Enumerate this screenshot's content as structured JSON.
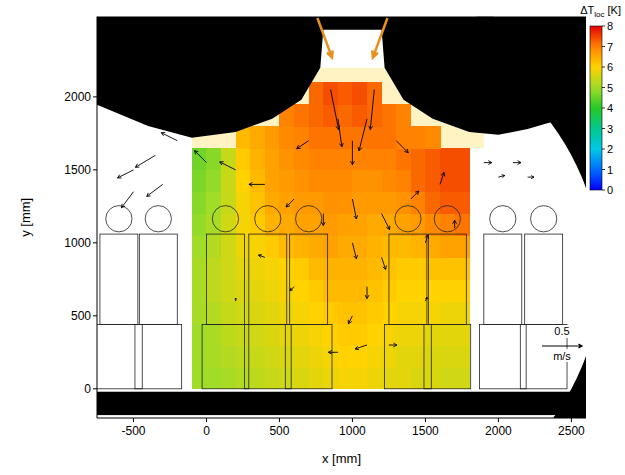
{
  "chart_data": {
    "type": "heatmap",
    "x_label": "x [mm]",
    "y_label": "y [mm]",
    "xlim": [
      -750,
      2600
    ],
    "ylim": [
      -200,
      2550
    ],
    "xticks": [
      -500,
      0,
      500,
      1000,
      1500,
      2000,
      2500
    ],
    "yticks": [
      0,
      500,
      1000,
      1500,
      2000
    ],
    "x_edges": [
      -100,
      0,
      100,
      200,
      300,
      400,
      500,
      600,
      700,
      800,
      900,
      1000,
      1100,
      1200,
      1300,
      1400,
      1500,
      1600,
      1700,
      1800
    ],
    "y_edges": [
      0,
      150,
      300,
      450,
      600,
      750,
      900,
      1050,
      1200,
      1350,
      1500,
      1650,
      1800,
      1950,
      2100
    ],
    "cells": [
      [
        5.0,
        5.0,
        5.1,
        5.2,
        5.3,
        5.4,
        5.5,
        5.6,
        5.7,
        5.8,
        5.9,
        5.9,
        5.8,
        5.7,
        5.7,
        5.6,
        5.6,
        5.5,
        5.5
      ],
      [
        5.0,
        5.1,
        5.2,
        5.3,
        5.4,
        5.5,
        5.6,
        5.7,
        5.8,
        5.9,
        6.0,
        6.0,
        5.9,
        5.8,
        5.7,
        5.7,
        5.6,
        5.6,
        5.6
      ],
      [
        5.0,
        5.1,
        5.3,
        5.4,
        5.5,
        5.6,
        5.7,
        5.8,
        5.9,
        6.0,
        6.1,
        6.1,
        6.0,
        5.9,
        5.8,
        5.8,
        5.7,
        5.7,
        5.7
      ],
      [
        5.1,
        5.2,
        5.4,
        5.5,
        5.6,
        5.7,
        5.8,
        5.9,
        6.0,
        6.1,
        6.2,
        6.2,
        6.1,
        6.0,
        5.9,
        5.9,
        5.9,
        5.8,
        5.8
      ],
      [
        5.1,
        5.3,
        5.5,
        5.6,
        5.7,
        5.8,
        5.9,
        6.0,
        6.1,
        6.3,
        6.3,
        6.3,
        6.2,
        6.1,
        6.0,
        6.0,
        6.0,
        6.0,
        6.0
      ],
      [
        5.1,
        5.3,
        5.5,
        5.7,
        5.8,
        5.9,
        6.0,
        6.1,
        6.3,
        6.4,
        6.4,
        6.4,
        6.3,
        6.2,
        6.1,
        6.1,
        6.2,
        6.2,
        6.2
      ],
      [
        5.0,
        5.2,
        5.5,
        5.8,
        5.9,
        6.1,
        6.3,
        6.4,
        6.5,
        6.6,
        6.5,
        6.5,
        6.4,
        6.3,
        6.3,
        6.4,
        6.5,
        6.6,
        6.6
      ],
      [
        4.9,
        5.1,
        5.5,
        5.9,
        6.1,
        6.4,
        6.5,
        6.6,
        6.6,
        6.7,
        6.6,
        6.6,
        6.5,
        6.5,
        6.6,
        6.7,
        6.9,
        7.0,
        7.1
      ],
      [
        4.8,
        5.0,
        5.4,
        5.9,
        6.2,
        6.5,
        6.6,
        6.7,
        6.7,
        6.8,
        6.8,
        6.7,
        6.7,
        6.7,
        6.8,
        7.0,
        7.2,
        7.3,
        7.3
      ],
      [
        4.7,
        4.9,
        5.4,
        6.0,
        6.3,
        6.6,
        6.7,
        6.8,
        6.9,
        6.9,
        6.9,
        6.8,
        6.8,
        6.9,
        7.0,
        7.2,
        7.3,
        7.4,
        7.4
      ],
      [
        4.6,
        4.8,
        5.4,
        6.1,
        6.4,
        6.6,
        6.8,
        6.9,
        7.0,
        7.0,
        7.0,
        7.0,
        7.0,
        7.0,
        7.1,
        7.2,
        7.3,
        7.4,
        7.4
      ],
      [
        null,
        null,
        null,
        6.3,
        6.5,
        6.7,
        6.9,
        7.0,
        7.1,
        7.1,
        7.1,
        7.1,
        7.1,
        7.1,
        7.0,
        7.0,
        6.9,
        null,
        null
      ],
      [
        null,
        null,
        null,
        null,
        null,
        null,
        7.0,
        7.1,
        7.2,
        7.3,
        7.2,
        7.3,
        7.2,
        7.1,
        7.0,
        null,
        null,
        null,
        null
      ],
      [
        null,
        null,
        null,
        null,
        null,
        null,
        null,
        null,
        7.2,
        7.4,
        7.3,
        7.4,
        7.2,
        null,
        null,
        null,
        null,
        null,
        null
      ]
    ],
    "colorbar": {
      "label": "ΔT",
      "subscript": "loc",
      "unit": "[K]",
      "range": [
        0,
        8
      ],
      "ticks": [
        0,
        1,
        2,
        3,
        4,
        5,
        6,
        7,
        8
      ]
    },
    "vectors": {
      "x": [
        850,
        1150,
        900,
        1100,
        1000,
        700,
        1300,
        -500,
        -350,
        -200,
        -500,
        -300,
        1900,
        2100,
        2000,
        2200,
        0,
        200,
        400,
        600,
        800,
        1000,
        1200,
        1400,
        1600,
        1000,
        1200,
        1100,
        1000,
        1100,
        900,
        1250,
        600,
        400,
        1500,
        1700,
        200,
        1500
      ],
      "y": [
        2050,
        2050,
        1850,
        1850,
        1700,
        1700,
        1700,
        1500,
        1600,
        1700,
        1350,
        1400,
        1550,
        1550,
        1450,
        1450,
        1550,
        1500,
        1400,
        1300,
        1200,
        1300,
        1200,
        1300,
        1400,
        1000,
        900,
        700,
        500,
        300,
        250,
        300,
        700,
        900,
        1000,
        1100,
        600,
        600
      ],
      "u": [
        0.1,
        -0.05,
        0.05,
        -0.1,
        0,
        -0.15,
        0.15,
        -0.2,
        -0.25,
        -0.2,
        -0.15,
        -0.2,
        0.1,
        0.1,
        0.08,
        0.08,
        -0.15,
        -0.2,
        -0.2,
        -0.1,
        0,
        0.05,
        0.1,
        0.1,
        0.05,
        0.05,
        0.05,
        0,
        -0.05,
        -0.15,
        -0.12,
        0.1,
        -0.05,
        -0.08,
        0.03,
        0,
        0,
        0.02
      ],
      "v": [
        -0.5,
        -0.5,
        -0.35,
        -0.4,
        -0.3,
        -0.1,
        -0.15,
        -0.1,
        -0.15,
        0.1,
        -0.2,
        -0.15,
        0,
        0,
        0.02,
        0,
        0.15,
        0.1,
        0,
        -0.1,
        -0.15,
        -0.25,
        -0.2,
        0.1,
        0.15,
        -0.2,
        -0.15,
        -0.15,
        -0.1,
        -0.05,
        0,
        0,
        -0.05,
        0.03,
        0.1,
        0.1,
        0.04,
        0.05
      ]
    },
    "vector_reference": {
      "value": 0.5,
      "unit": "m/s"
    }
  }
}
